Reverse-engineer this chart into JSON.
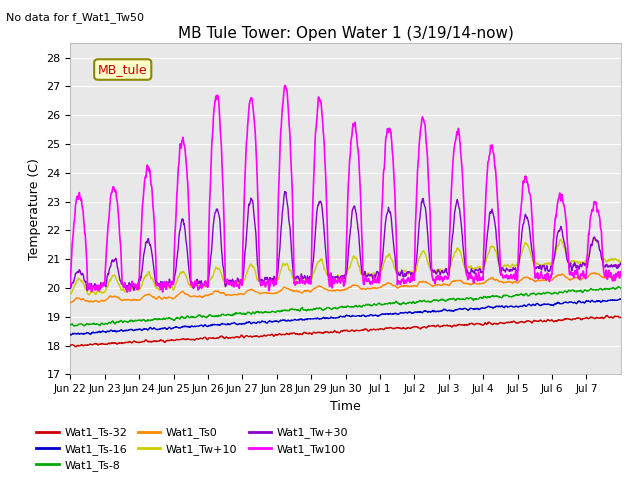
{
  "title": "MB Tule Tower: Open Water 1 (3/19/14-now)",
  "subtitle": "No data for f_Wat1_Tw50",
  "xlabel": "Time",
  "ylabel": "Temperature (C)",
  "ylim": [
    17.0,
    28.5
  ],
  "yticks": [
    17.0,
    18.0,
    19.0,
    20.0,
    21.0,
    22.0,
    23.0,
    24.0,
    25.0,
    26.0,
    27.0,
    28.0
  ],
  "legend_label": "MB_tule",
  "legend_entries": [
    {
      "label": "Wat1_Ts-32",
      "color": "#cc0000"
    },
    {
      "label": "Wat1_Ts-16",
      "color": "#0000cc"
    },
    {
      "label": "Wat1_Ts-8",
      "color": "#00aa00"
    },
    {
      "label": "Wat1_Ts0",
      "color": "#ff8800"
    },
    {
      "label": "Wat1_Tw+10",
      "color": "#cccc00"
    },
    {
      "label": "Wat1_Tw+30",
      "color": "#8800cc"
    },
    {
      "label": "Wat1_Tw100",
      "color": "#ff00ff"
    }
  ],
  "x_tick_labels": [
    "Jun 22",
    "Jun 23",
    "Jun 24",
    "Jun 25",
    "Jun 26",
    "Jun 27",
    "Jun 28",
    "Jun 29",
    "Jun 30",
    "Jul 1",
    "Jul 2",
    "Jul 3",
    "Jul 4",
    "Jul 5",
    "Jul 6",
    "Jul 7"
  ],
  "num_days": 16,
  "background_color": "#ffffff",
  "plot_bg_color": "#e8e8e8"
}
